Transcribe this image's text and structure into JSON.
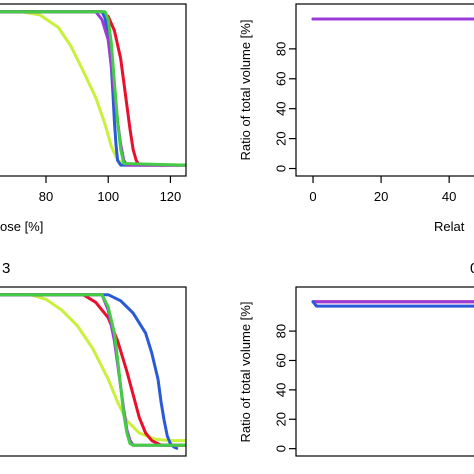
{
  "chart_data": [
    {
      "type": "line",
      "title": "",
      "xlabel": "ose [%]",
      "ylabel": "",
      "xlim": [
        62,
        125
      ],
      "ylim": [
        -5,
        105
      ],
      "x_ticks": [
        "80",
        "100",
        "120"
      ],
      "y_ticks": [],
      "grid": false,
      "series": [
        {
          "color": "#c8f03c",
          "x": [
            60,
            72,
            78,
            84,
            88,
            92,
            96,
            99,
            101,
            103,
            106,
            110,
            125
          ],
          "y": [
            100,
            100,
            98,
            90,
            78,
            62,
            45,
            28,
            14,
            5,
            2,
            2,
            2
          ]
        },
        {
          "color": "#e8102c",
          "x": [
            60,
            98,
            100,
            102,
            104,
            105,
            106,
            107,
            108,
            109,
            110,
            125
          ],
          "y": [
            100,
            100,
            97,
            88,
            70,
            55,
            40,
            25,
            12,
            5,
            2,
            2
          ]
        },
        {
          "color": "#2a5ad8",
          "x": [
            60,
            98,
            99,
            100,
            101,
            101.5,
            102,
            102.5,
            103,
            104,
            125
          ],
          "y": [
            100,
            100,
            96,
            85,
            65,
            48,
            30,
            15,
            5,
            2,
            2
          ]
        },
        {
          "color": "#9a3cd8",
          "x": [
            60,
            96,
            98,
            100,
            101,
            102,
            103,
            104,
            105,
            106,
            125
          ],
          "y": [
            100,
            100,
            95,
            82,
            65,
            48,
            30,
            15,
            5,
            2,
            2
          ]
        },
        {
          "color": "#44cc44",
          "x": [
            60,
            99,
            100,
            101,
            102,
            103,
            104,
            105,
            125
          ],
          "y": [
            100,
            100,
            95,
            80,
            55,
            30,
            12,
            3,
            2
          ]
        }
      ]
    },
    {
      "type": "line",
      "title": "",
      "xlabel": "Relat",
      "ylabel": "Ratio of total volume [%]",
      "xlim": [
        -5,
        52
      ],
      "ylim": [
        -5,
        110
      ],
      "x_ticks": [
        "0",
        "20",
        "40"
      ],
      "y_ticks": [
        "0",
        "20",
        "40",
        "60",
        "80"
      ],
      "grid": false,
      "series": [
        {
          "color": "#e8102c",
          "x": [
            0,
            52
          ],
          "y": [
            100,
            100
          ]
        },
        {
          "color": "#9a3cd8",
          "x": [
            0,
            52
          ],
          "y": [
            100,
            100
          ]
        }
      ]
    },
    {
      "type": "line",
      "title": "3",
      "xlabel": "",
      "ylabel": "",
      "xlim": [
        62,
        125
      ],
      "ylim": [
        -5,
        105
      ],
      "x_ticks": [],
      "y_ticks": [],
      "grid": false,
      "series": [
        {
          "color": "#c8f03c",
          "x": [
            60,
            75,
            80,
            85,
            90,
            95,
            100,
            103,
            106,
            110,
            115,
            120,
            125
          ],
          "y": [
            100,
            100,
            97,
            90,
            80,
            65,
            45,
            30,
            18,
            10,
            6,
            5,
            5
          ]
        },
        {
          "color": "#e8102c",
          "x": [
            60,
            92,
            96,
            100,
            103,
            106,
            108,
            110,
            112,
            114,
            117,
            125
          ],
          "y": [
            100,
            100,
            95,
            85,
            70,
            50,
            35,
            20,
            10,
            5,
            2,
            2
          ]
        },
        {
          "color": "#2a5ad8",
          "x": [
            60,
            100,
            104,
            108,
            112,
            114,
            116,
            117,
            118,
            119,
            120,
            121,
            122
          ],
          "y": [
            100,
            100,
            96,
            88,
            75,
            62,
            45,
            30,
            18,
            8,
            3,
            1,
            0
          ]
        },
        {
          "color": "#9a3cd8",
          "x": [
            60,
            98,
            100,
            102,
            103,
            104,
            105,
            106,
            107,
            108,
            125
          ],
          "y": [
            100,
            100,
            90,
            70,
            55,
            40,
            25,
            12,
            5,
            2,
            2
          ]
        },
        {
          "color": "#44cc44",
          "x": [
            60,
            98,
            100,
            102,
            103,
            104,
            105,
            106,
            107,
            108,
            125
          ],
          "y": [
            100,
            100,
            92,
            75,
            58,
            40,
            22,
            10,
            3,
            2,
            2
          ]
        }
      ]
    },
    {
      "type": "line",
      "title": "0",
      "xlabel": "",
      "ylabel": "Ratio of total volume [%]",
      "xlim": [
        -5,
        52
      ],
      "ylim": [
        -5,
        110
      ],
      "x_ticks": [],
      "y_ticks": [
        "0",
        "20",
        "40",
        "60",
        "80"
      ],
      "grid": false,
      "series": [
        {
          "color": "#e8102c",
          "x": [
            0,
            52
          ],
          "y": [
            100,
            100
          ]
        },
        {
          "color": "#9a3cd8",
          "x": [
            0,
            52
          ],
          "y": [
            100,
            100
          ]
        },
        {
          "color": "#2a5ad8",
          "x": [
            0,
            1,
            52
          ],
          "y": [
            100,
            97,
            97
          ]
        }
      ]
    }
  ]
}
